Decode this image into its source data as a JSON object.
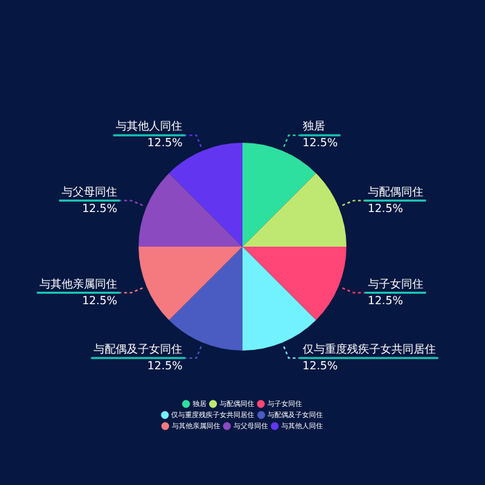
{
  "chart_data": {
    "type": "pie",
    "categories": [
      "独居",
      "与配偶同住",
      "与子女同住",
      "仅与重度残疾子女共同居住",
      "与配偶及子女同住",
      "与其他亲属同住",
      "与父母同住",
      "与其他人同住"
    ],
    "values": [
      12.5,
      12.5,
      12.5,
      12.5,
      12.5,
      12.5,
      12.5,
      12.5
    ],
    "colors": [
      "#2ee0a0",
      "#bfe872",
      "#ff4677",
      "#72f2ff",
      "#4a5cc2",
      "#f47a80",
      "#8c4ac0",
      "#6236f0"
    ],
    "value_labels": [
      "12.5%",
      "12.5%",
      "12.5%",
      "12.5%",
      "12.5%",
      "12.5%",
      "12.5%",
      "12.5%"
    ],
    "legend": "bottom"
  }
}
